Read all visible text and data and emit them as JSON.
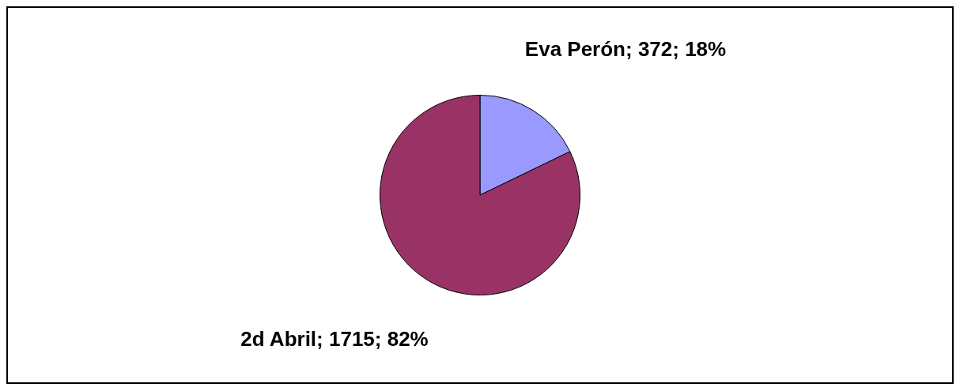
{
  "chart_data": {
    "type": "pie",
    "categories": [
      "Eva Perón",
      "2d Abril"
    ],
    "values": [
      372,
      1715
    ],
    "colors": [
      "#9999ff",
      "#993366"
    ],
    "value_labels": [
      "372; 18%",
      "1715; 82%"
    ],
    "legend": false
  }
}
